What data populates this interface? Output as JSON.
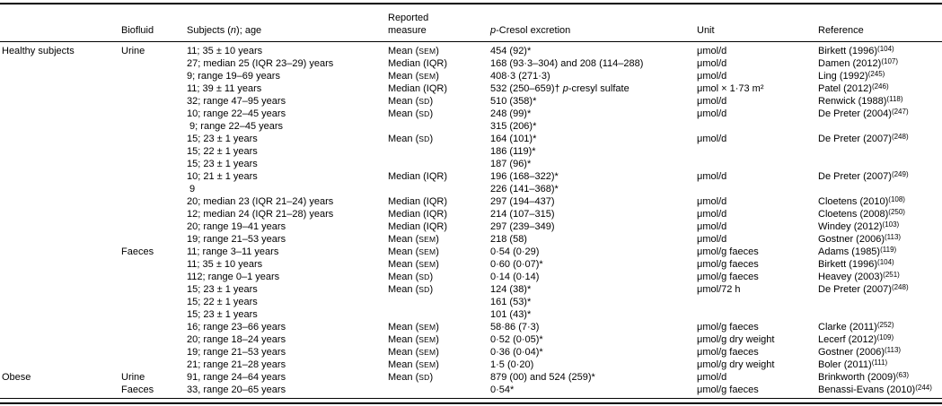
{
  "colors": {
    "background": "#ffffff",
    "text": "#000000",
    "rule": "#000000"
  },
  "table": {
    "headers": [
      {
        "key": "group",
        "label": ""
      },
      {
        "key": "biofluid",
        "label": "Biofluid"
      },
      {
        "key": "subjects",
        "parts": [
          {
            "t": "Subjects ("
          },
          {
            "t": "n",
            "i": true
          },
          {
            "t": "); age"
          }
        ]
      },
      {
        "key": "measure",
        "lines": [
          "Reported",
          "measure"
        ]
      },
      {
        "key": "excretion",
        "parts": [
          {
            "t": "p",
            "i": true
          },
          {
            "t": "-Cresol excretion"
          }
        ]
      },
      {
        "key": "unit",
        "label": "Unit"
      },
      {
        "key": "reference",
        "label": "Reference"
      }
    ],
    "rows": [
      {
        "group": "Healthy subjects",
        "biofluid": "Urine",
        "subjects": "11; 35 ± 10 years",
        "measure": [
          {
            "t": "Mean ("
          },
          {
            "t": "sem",
            "sc": true
          },
          {
            "t": ")"
          }
        ],
        "excretion": "454 (92)*",
        "unit": "μmol/d",
        "ref": "Birkett (1996)",
        "ref_sup": "(104)"
      },
      {
        "subjects": "27; median 25 (IQR 23–29) years",
        "measure": "Median (IQR)",
        "excretion": "168 (93·3–304) and 208 (114–288)",
        "unit": "μmol/d",
        "ref": "Damen (2012)",
        "ref_sup": "(107)"
      },
      {
        "subjects": "9; range 19–69 years",
        "measure": [
          {
            "t": "Mean ("
          },
          {
            "t": "sem",
            "sc": true
          },
          {
            "t": ")"
          }
        ],
        "excretion": "408·3 (271·3)",
        "unit": "μmol/d",
        "ref": "Ling (1992)",
        "ref_sup": "(245)"
      },
      {
        "subjects": "11; 39 ± 11 years",
        "measure": "Median (IQR)",
        "excretion": [
          {
            "t": "532 (250–659)† "
          },
          {
            "t": "p",
            "i": true
          },
          {
            "t": "-cresyl sulfate"
          }
        ],
        "unit": "μmol × 1·73 m²",
        "ref": "Patel (2012)",
        "ref_sup": "(246)"
      },
      {
        "subjects": "32; range 47–95 years",
        "measure": [
          {
            "t": "Mean ("
          },
          {
            "t": "sd",
            "sc": true
          },
          {
            "t": ")"
          }
        ],
        "excretion": "510 (358)*",
        "unit": "μmol/d",
        "ref": "Renwick (1988)",
        "ref_sup": "(118)"
      },
      {
        "subjects": "10; range 22–45 years",
        "measure": [
          {
            "t": "Mean ("
          },
          {
            "t": "sd",
            "sc": true
          },
          {
            "t": ")"
          }
        ],
        "excretion": "248 (99)*",
        "unit": "μmol/d",
        "ref": "De Preter (2004)",
        "ref_sup": "(247)"
      },
      {
        "subjects": " 9; range 22–45 years",
        "excretion": "315 (206)*"
      },
      {
        "subjects": "15; 23 ± 1 years",
        "measure": [
          {
            "t": "Mean ("
          },
          {
            "t": "sd",
            "sc": true
          },
          {
            "t": ")"
          }
        ],
        "excretion": "164 (101)*",
        "unit": "μmol/d",
        "ref": "De Preter (2007)",
        "ref_sup": "(248)"
      },
      {
        "subjects": "15; 22 ± 1 years",
        "excretion": "186 (119)*"
      },
      {
        "subjects": "15; 23 ± 1 years",
        "excretion": "187 (96)*"
      },
      {
        "subjects": "10; 21 ± 1 years",
        "measure": "Median (IQR)",
        "excretion": "196 (168–322)*",
        "unit": "μmol/d",
        "ref": "De Preter (2007)",
        "ref_sup": "(249)"
      },
      {
        "subjects": " 9",
        "excretion": "226 (141–368)*"
      },
      {
        "subjects": "20; median 23 (IQR 21–24) years",
        "measure": "Median (IQR)",
        "excretion": "297 (194–437)",
        "unit": "μmol/d",
        "ref": "Cloetens (2010)",
        "ref_sup": "(108)"
      },
      {
        "subjects": "12; median 24 (IQR 21–28) years",
        "measure": "Median (IQR)",
        "excretion": "214 (107–315)",
        "unit": "μmol/d",
        "ref": "Cloetens (2008)",
        "ref_sup": "(250)"
      },
      {
        "subjects": "20; range 19–41 years",
        "measure": "Median (IQR)",
        "excretion": "297 (239–349)",
        "unit": "μmol/d",
        "ref": "Windey (2012)",
        "ref_sup": "(103)"
      },
      {
        "subjects": "19; range 21–53 years",
        "measure": [
          {
            "t": "Mean ("
          },
          {
            "t": "sem",
            "sc": true
          },
          {
            "t": ")"
          }
        ],
        "excretion": "218 (58)",
        "unit": "μmol/d",
        "ref": "Gostner (2006)",
        "ref_sup": "(113)"
      },
      {
        "biofluid": "Faeces",
        "subjects": "11; range 3–11 years",
        "measure": [
          {
            "t": "Mean ("
          },
          {
            "t": "sem",
            "sc": true
          },
          {
            "t": ")"
          }
        ],
        "excretion": "0·54 (0·29)",
        "unit": "μmol/g faeces",
        "ref": "Adams (1985)",
        "ref_sup": "(119)"
      },
      {
        "subjects": "11; 35 ± 10 years",
        "measure": [
          {
            "t": "Mean ("
          },
          {
            "t": "sem",
            "sc": true
          },
          {
            "t": ")"
          }
        ],
        "excretion": "0·60 (0·07)*",
        "unit": "μmol/g faeces",
        "ref": "Birkett (1996)",
        "ref_sup": "(104)"
      },
      {
        "subjects": "112; range 0–1 years",
        "measure": [
          {
            "t": "Mean ("
          },
          {
            "t": "sd",
            "sc": true
          },
          {
            "t": ")"
          }
        ],
        "excretion": "0·14 (0·14)",
        "unit": "μmol/g faeces",
        "ref": "Heavey (2003)",
        "ref_sup": "(251)"
      },
      {
        "subjects": "15; 23 ± 1 years",
        "measure": [
          {
            "t": "Mean ("
          },
          {
            "t": "sd",
            "sc": true
          },
          {
            "t": ")"
          }
        ],
        "excretion": "124 (38)*",
        "unit": "μmol/72 h",
        "ref": "De Preter (2007)",
        "ref_sup": "(248)"
      },
      {
        "subjects": "15; 22 ± 1 years",
        "excretion": "161 (53)*"
      },
      {
        "subjects": "15; 23 ± 1 years",
        "excretion": "101 (43)*"
      },
      {
        "subjects": "16; range 23–66 years",
        "measure": [
          {
            "t": "Mean ("
          },
          {
            "t": "sem",
            "sc": true
          },
          {
            "t": ")"
          }
        ],
        "excretion": "58·86 (7·3)",
        "unit": "μmol/g faeces",
        "ref": "Clarke (2011)",
        "ref_sup": "(252)"
      },
      {
        "subjects": "20; range 18–24 years",
        "measure": [
          {
            "t": "Mean ("
          },
          {
            "t": "sem",
            "sc": true
          },
          {
            "t": ")"
          }
        ],
        "excretion": "0·52 (0·05)*",
        "unit": "μmol/g dry weight",
        "ref": "Lecerf (2012)",
        "ref_sup": "(109)"
      },
      {
        "subjects": "19; range 21–53 years",
        "measure": [
          {
            "t": "Mean ("
          },
          {
            "t": "sem",
            "sc": true
          },
          {
            "t": ")"
          }
        ],
        "excretion": "0·36 (0·04)*",
        "unit": "μmol/g faeces",
        "ref": "Gostner (2006)",
        "ref_sup": "(113)"
      },
      {
        "subjects": "21; range 21–28 years",
        "measure": [
          {
            "t": "Mean ("
          },
          {
            "t": "sem",
            "sc": true
          },
          {
            "t": ")"
          }
        ],
        "excretion": "1·5 (0·20)",
        "unit": "μmol/g dry weight",
        "ref": "Boler (2011)",
        "ref_sup": "(111)"
      },
      {
        "group": "Obese",
        "biofluid": "Urine",
        "subjects": "91, range 24–64 years",
        "measure": [
          {
            "t": "Mean ("
          },
          {
            "t": "sd",
            "sc": true
          },
          {
            "t": ")"
          }
        ],
        "excretion": "879 (00) and 524 (259)*",
        "unit": "μmol/d",
        "ref": "Brinkworth (2009)",
        "ref_sup": "(63)"
      },
      {
        "biofluid": "Faeces",
        "subjects": "33, range 20–65 years",
        "excretion": "0·54*",
        "unit": "μmol/g faeces",
        "ref": "Benassi-Evans (2010)",
        "ref_sup": "(244)"
      }
    ]
  }
}
